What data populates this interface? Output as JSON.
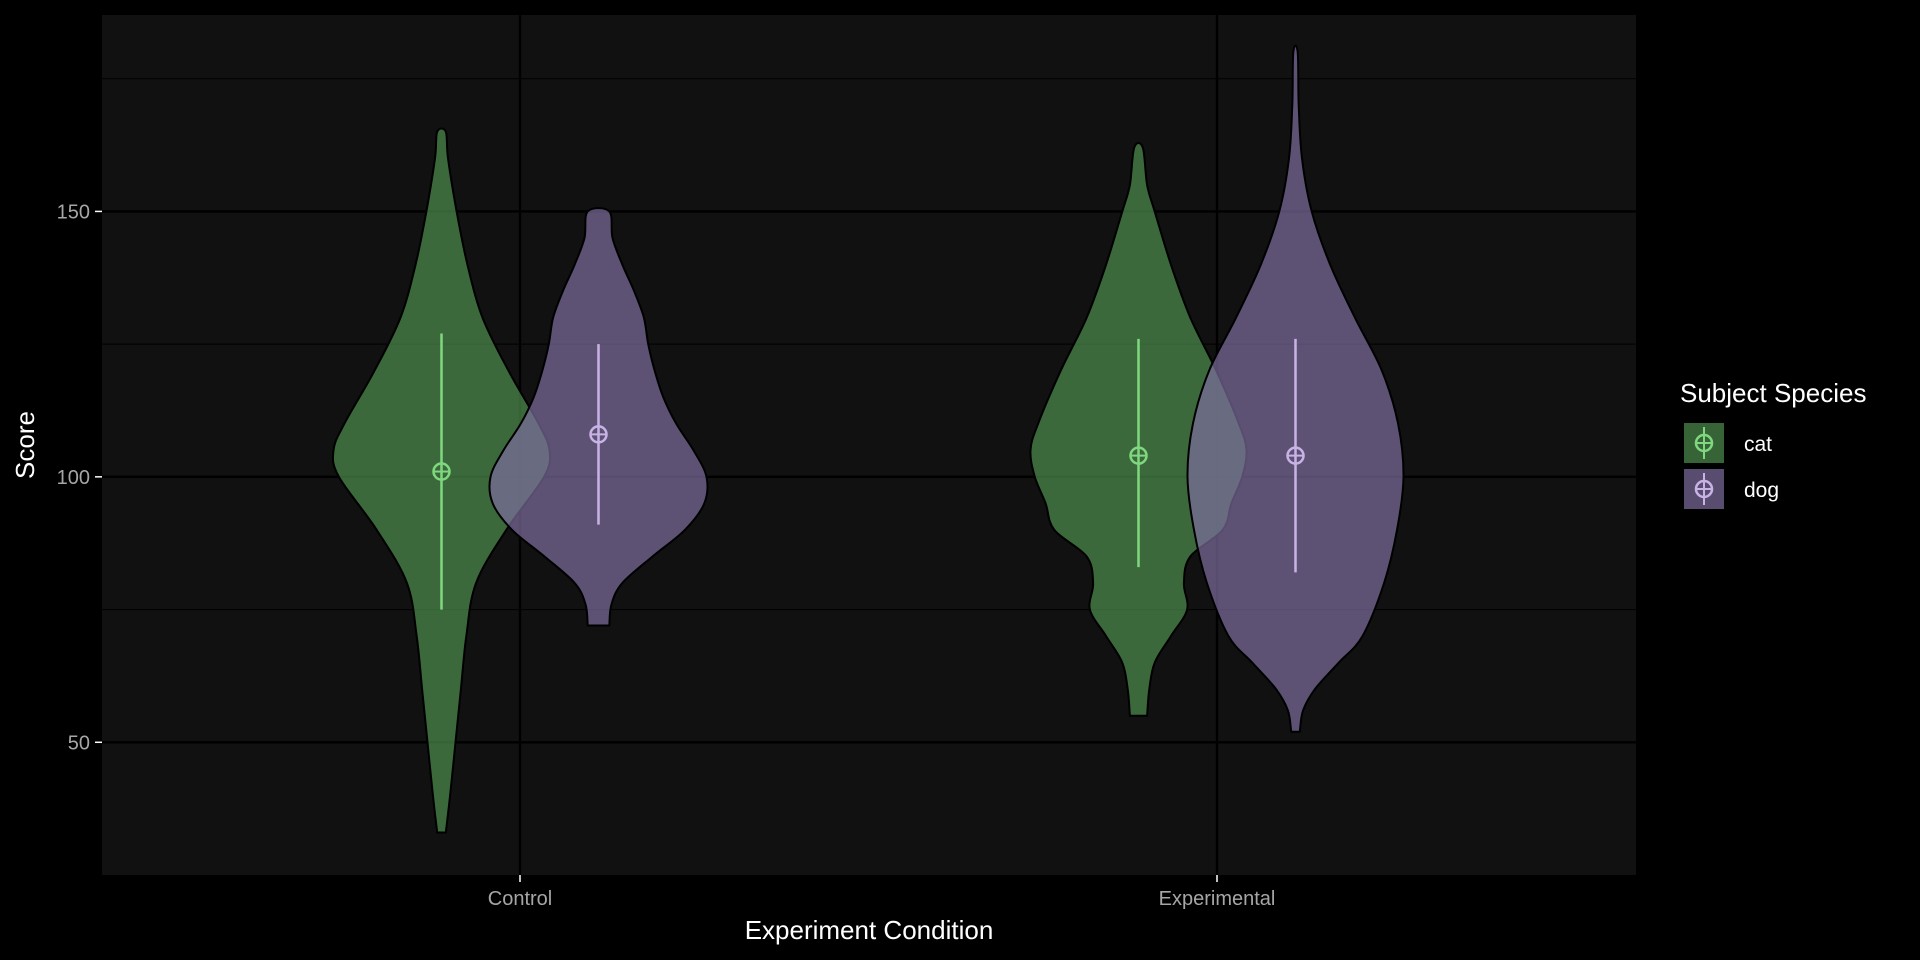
{
  "chart_data": {
    "type": "violin",
    "xlabel": "Experiment Condition",
    "ylabel": "Score",
    "categories": [
      "Control",
      "Experimental"
    ],
    "y_ticks": [
      50,
      100,
      150
    ],
    "ylim": [
      25,
      187
    ],
    "grid": true,
    "legend": {
      "title": "Subject Species",
      "position": "right"
    },
    "series": [
      {
        "name": "cat",
        "color": "#7fd87f",
        "fill": "#4d8f4d",
        "groups": [
          {
            "category": "Control",
            "mean": 101,
            "lower": 75,
            "upper": 127,
            "min": 33,
            "max": 165,
            "density": [
              [
                33,
                0.04
              ],
              [
                40,
                0.08
              ],
              [
                50,
                0.13
              ],
              [
                60,
                0.18
              ],
              [
                70,
                0.23
              ],
              [
                80,
                0.32
              ],
              [
                90,
                0.6
              ],
              [
                100,
                0.95
              ],
              [
                105,
                1.0
              ],
              [
                110,
                0.9
              ],
              [
                120,
                0.62
              ],
              [
                130,
                0.38
              ],
              [
                140,
                0.24
              ],
              [
                150,
                0.14
              ],
              [
                160,
                0.06
              ],
              [
                165,
                0.04
              ]
            ]
          },
          {
            "category": "Experimental",
            "mean": 104,
            "lower": 83,
            "upper": 126,
            "min": 55,
            "max": 162,
            "density": [
              [
                55,
                0.08
              ],
              [
                60,
                0.1
              ],
              [
                65,
                0.15
              ],
              [
                70,
                0.3
              ],
              [
                75,
                0.45
              ],
              [
                80,
                0.42
              ],
              [
                85,
                0.48
              ],
              [
                90,
                0.78
              ],
              [
                95,
                0.86
              ],
              [
                100,
                0.96
              ],
              [
                105,
                1.0
              ],
              [
                110,
                0.93
              ],
              [
                120,
                0.72
              ],
              [
                130,
                0.48
              ],
              [
                140,
                0.3
              ],
              [
                150,
                0.15
              ],
              [
                155,
                0.08
              ],
              [
                162,
                0.04
              ]
            ]
          }
        ]
      },
      {
        "name": "dog",
        "color": "#c9b3e6",
        "fill": "#7d6d9e",
        "groups": [
          {
            "category": "Control",
            "mean": 108,
            "lower": 91,
            "upper": 125,
            "min": 72,
            "max": 150,
            "density": [
              [
                72,
                0.1
              ],
              [
                76,
                0.12
              ],
              [
                80,
                0.22
              ],
              [
                85,
                0.5
              ],
              [
                90,
                0.8
              ],
              [
                95,
                0.98
              ],
              [
                100,
                1.0
              ],
              [
                105,
                0.88
              ],
              [
                110,
                0.72
              ],
              [
                115,
                0.6
              ],
              [
                120,
                0.52
              ],
              [
                125,
                0.46
              ],
              [
                130,
                0.42
              ],
              [
                135,
                0.33
              ],
              [
                140,
                0.22
              ],
              [
                145,
                0.13
              ],
              [
                150,
                0.1
              ]
            ]
          },
          {
            "category": "Experimental",
            "mean": 104,
            "lower": 82,
            "upper": 126,
            "min": 52,
            "max": 180,
            "density": [
              [
                52,
                0.04
              ],
              [
                56,
                0.07
              ],
              [
                60,
                0.18
              ],
              [
                65,
                0.4
              ],
              [
                70,
                0.62
              ],
              [
                80,
                0.82
              ],
              [
                90,
                0.94
              ],
              [
                100,
                1.0
              ],
              [
                110,
                0.95
              ],
              [
                120,
                0.8
              ],
              [
                130,
                0.55
              ],
              [
                140,
                0.32
              ],
              [
                150,
                0.15
              ],
              [
                160,
                0.06
              ],
              [
                170,
                0.03
              ],
              [
                180,
                0.02
              ]
            ]
          }
        ]
      }
    ]
  }
}
